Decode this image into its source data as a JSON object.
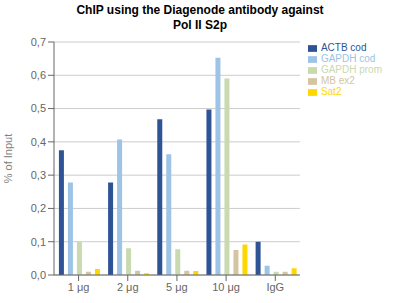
{
  "chart_data": {
    "type": "bar",
    "title": "ChIP using the Diagenode antibody against\nPol II S2p",
    "y_label": "% of Input",
    "categories": [
      "1 μg",
      "2 μg",
      "5 μg",
      "10 μg",
      "IgG"
    ],
    "series": [
      {
        "name": "ACTB cod",
        "color": "#2E5496",
        "values": [
          0.375,
          0.278,
          0.468,
          0.497,
          0.1
        ]
      },
      {
        "name": "GAPDH cod",
        "color": "#9DC3E6",
        "values": [
          0.278,
          0.407,
          0.363,
          0.653,
          0.028
        ]
      },
      {
        "name": "GAPDH prom",
        "color": "#C9D9B0",
        "values": [
          0.1,
          0.08,
          0.077,
          0.59,
          0.01
        ]
      },
      {
        "name": "MB ex2",
        "color": "#D4C5A0",
        "values": [
          0.01,
          0.013,
          0.013,
          0.075,
          0.01
        ]
      },
      {
        "name": "Sat2",
        "color": "#FFD700",
        "values": [
          0.018,
          0.005,
          0.012,
          0.092,
          0.02
        ]
      }
    ],
    "ylim": [
      0,
      0.7
    ],
    "yticks": [
      {
        "value": 0.0,
        "label": "0,0"
      },
      {
        "value": 0.1,
        "label": "0,1"
      },
      {
        "value": 0.2,
        "label": "0,2"
      },
      {
        "value": 0.3,
        "label": "0,3"
      },
      {
        "value": 0.4,
        "label": "0,4"
      },
      {
        "value": 0.5,
        "label": "0,5"
      },
      {
        "value": 0.6,
        "label": "0,6"
      },
      {
        "value": 0.7,
        "label": "0,7"
      }
    ],
    "grid": true,
    "legend": "upper right"
  }
}
